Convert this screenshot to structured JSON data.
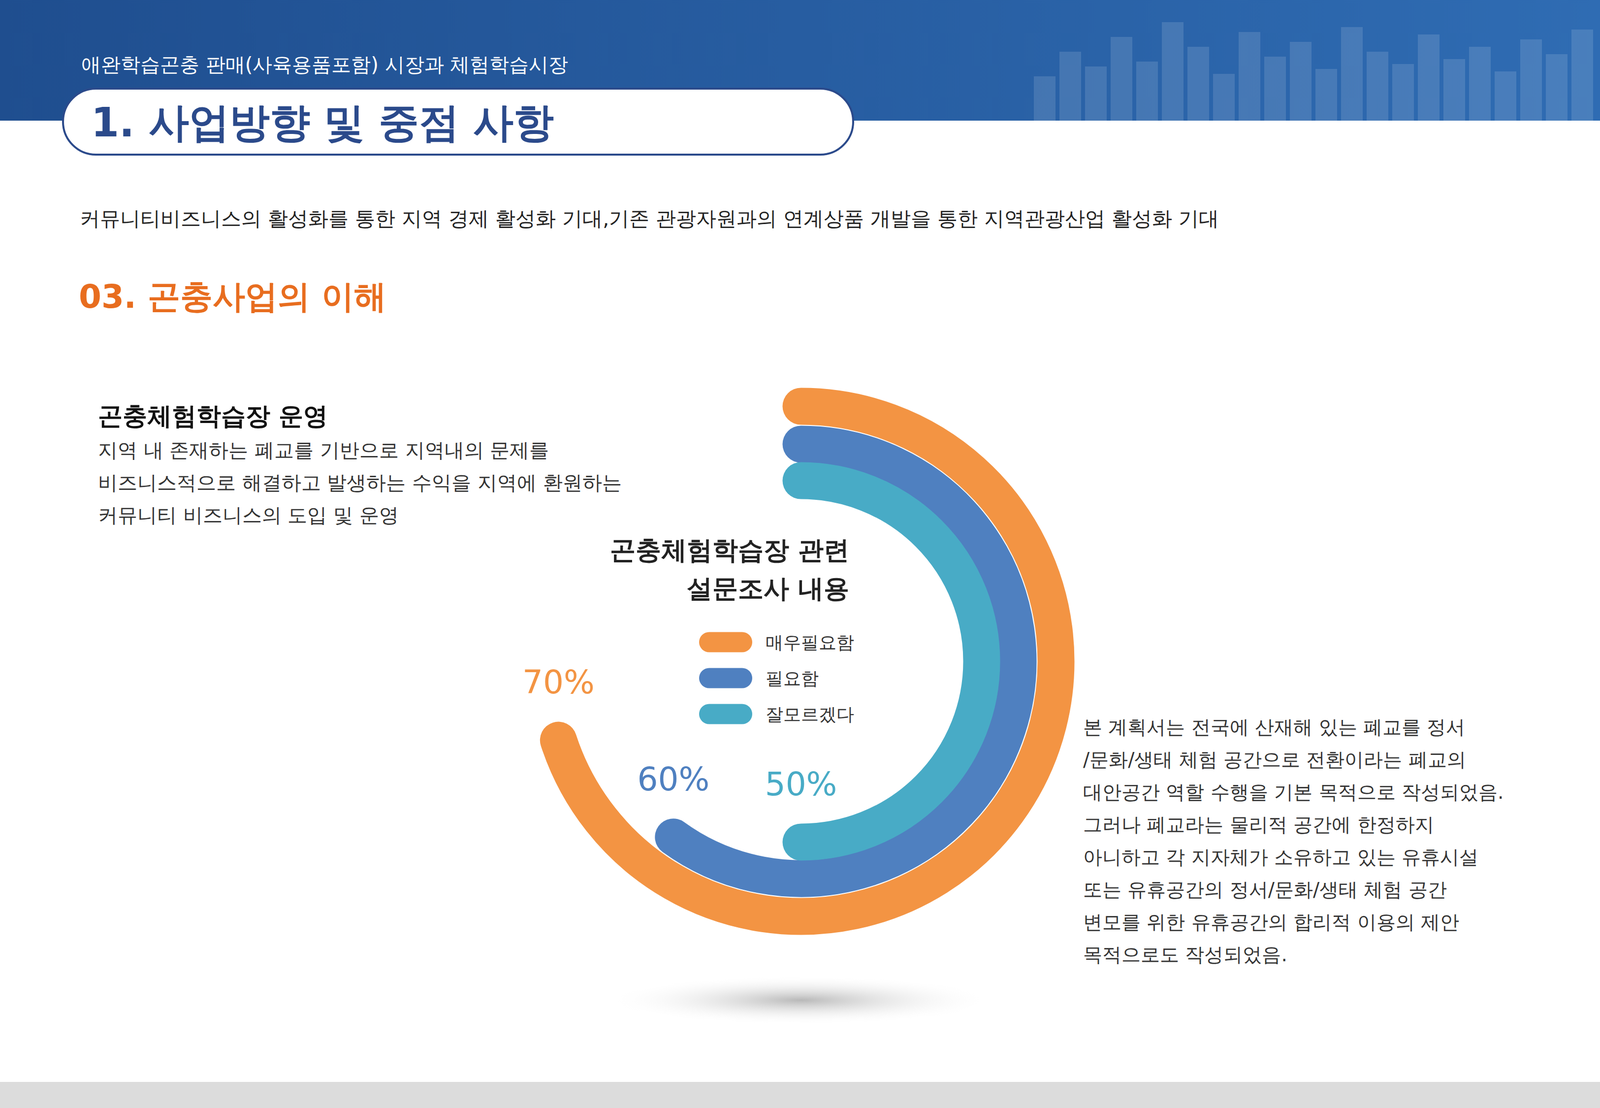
{
  "header": {
    "subtitle": "애완학습곤충 판매(사육용품포함) 시장과 체험학습시장",
    "title": "1. 사업방향 및 중점 사항"
  },
  "intro": "커뮤니티비즈니스의 활성화를 통한 지역 경제 활성화 기대,기존 관광자원과의 연계상품 개발을 통한 지역관광산업 활성화 기대",
  "section_title": "03. 곤충사업의 이해",
  "left_text": {
    "heading": "곤충체험학습장 운영",
    "lines": [
      "지역 내 존재하는 폐교를 기반으로 지역내의 문제를",
      "비즈니스적으로 해결하고 발생하는 수익을 지역에 환원하는",
      "커뮤니티 비즈니스의 도입 및 운영"
    ]
  },
  "right_text": {
    "lines": [
      "본 계획서는 전국에 산재해 있는 폐교를 정서",
      "/문화/생태 체험 공간으로 전환이라는 폐교의",
      "대안공간 역할 수행을 기본 목적으로 작성되었음.",
      "그러나 폐교라는 물리적 공간에 한정하지",
      "아니하고 각 지자체가 소유하고 있는 유휴시설",
      "또는 유휴공간의 정서/문화/생태 체험 공간",
      "변모를 위한 유휴공간의 합리적 이용의 제안",
      "목적으로도 작성되었음."
    ]
  },
  "chart_data": {
    "type": "radial_bar",
    "title": "곤충체험학습장 관련 설문조사 내용",
    "categories": [
      "매우필요함",
      "필요함",
      "잘모르겠다"
    ],
    "values": [
      70,
      60,
      50
    ],
    "value_labels": [
      "70%",
      "60%",
      "50%"
    ],
    "colors": [
      "#f39443",
      "#4f80c0",
      "#48abc6"
    ],
    "ylim": [
      0,
      100
    ],
    "data_labels": true,
    "legend": "center"
  }
}
